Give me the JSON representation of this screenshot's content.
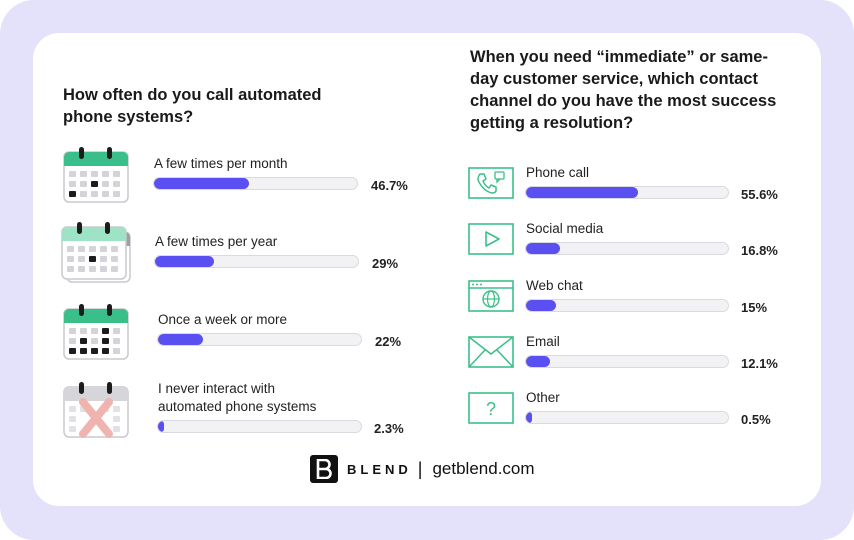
{
  "chart_data": [
    {
      "type": "bar",
      "title": "How often do you call automated phone systems?",
      "categories": [
        "A few times per month",
        "A few times per year",
        "Once a week or more",
        "I never interact with automated phone systems"
      ],
      "values": [
        46.7,
        29,
        22,
        2.3
      ],
      "value_labels": [
        "46.7%",
        "29%",
        "22%",
        "2.3%"
      ],
      "xlim": [
        0,
        100
      ],
      "bar_color": "#5a4ff0"
    },
    {
      "type": "bar",
      "title": "When you need “immediate” or same-day customer service, which contact channel do you have the most success getting a resolution?",
      "categories": [
        "Phone call",
        "Social media",
        "Web chat",
        "Email",
        "Other"
      ],
      "values": [
        55.6,
        16.8,
        15,
        12.1,
        0.5
      ],
      "value_labels": [
        "55.6%",
        "16.8%",
        "15%",
        "12.1%",
        "0.5%"
      ],
      "xlim": [
        0,
        100
      ],
      "bar_color": "#5a4ff0"
    }
  ],
  "icons": {
    "left": [
      "calendar-icon",
      "calendar-stack-icon",
      "calendar-icon",
      "calendar-crossed-icon"
    ],
    "right": [
      "phone-call-icon",
      "video-play-icon",
      "web-chat-icon",
      "email-icon",
      "question-icon"
    ]
  },
  "colors": {
    "accent": "#5a4ff0",
    "icon_green": "#3bbf8a",
    "frame": "#e4e2fb"
  },
  "footer": {
    "logo_letter": "B",
    "brand": "BLEND",
    "separator": "|",
    "site": "getblend.com"
  }
}
